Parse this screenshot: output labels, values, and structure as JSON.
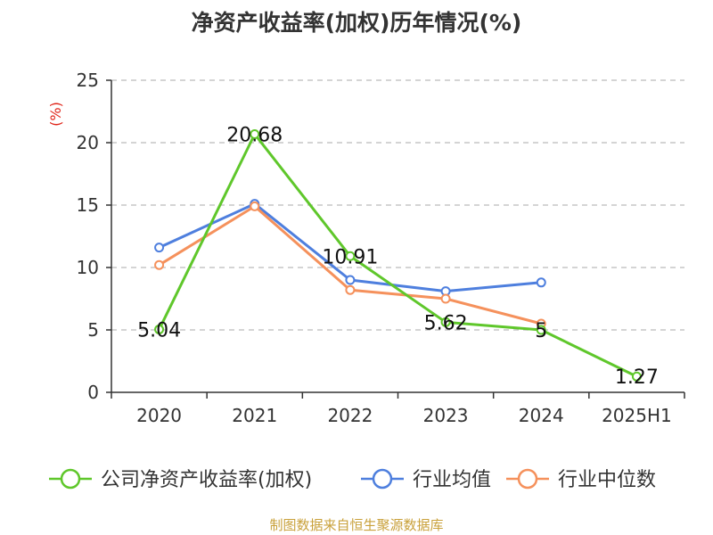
{
  "title": "净资产收益率(加权)历年情况(%)",
  "source": "制图数据来自恒生聚源数据库",
  "chart_data": {
    "type": "line",
    "title": "净资产收益率(加权)历年情况(%)",
    "ylabel": "(%)",
    "xlabel": "",
    "categories": [
      "2020",
      "2021",
      "2022",
      "2023",
      "2024",
      "2025H1"
    ],
    "ylim": [
      0,
      25
    ],
    "yticks": [
      0,
      5,
      10,
      15,
      20,
      25
    ],
    "grid": true,
    "legend_position": "bottom",
    "series": [
      {
        "name": "公司净资产收益率(加权)",
        "color": "#5fc72b",
        "values": [
          5.04,
          20.68,
          10.91,
          5.62,
          5,
          1.27
        ],
        "labels": [
          "5.04",
          "20.68",
          "10.91",
          "5.62",
          "5",
          "1.27"
        ]
      },
      {
        "name": "行业均值",
        "color": "#4e7fde",
        "values": [
          11.6,
          15.1,
          9.0,
          8.1,
          8.8,
          null
        ]
      },
      {
        "name": "行业中位数",
        "color": "#f5915c",
        "values": [
          10.2,
          14.9,
          8.2,
          7.5,
          5.5,
          null
        ]
      }
    ]
  }
}
